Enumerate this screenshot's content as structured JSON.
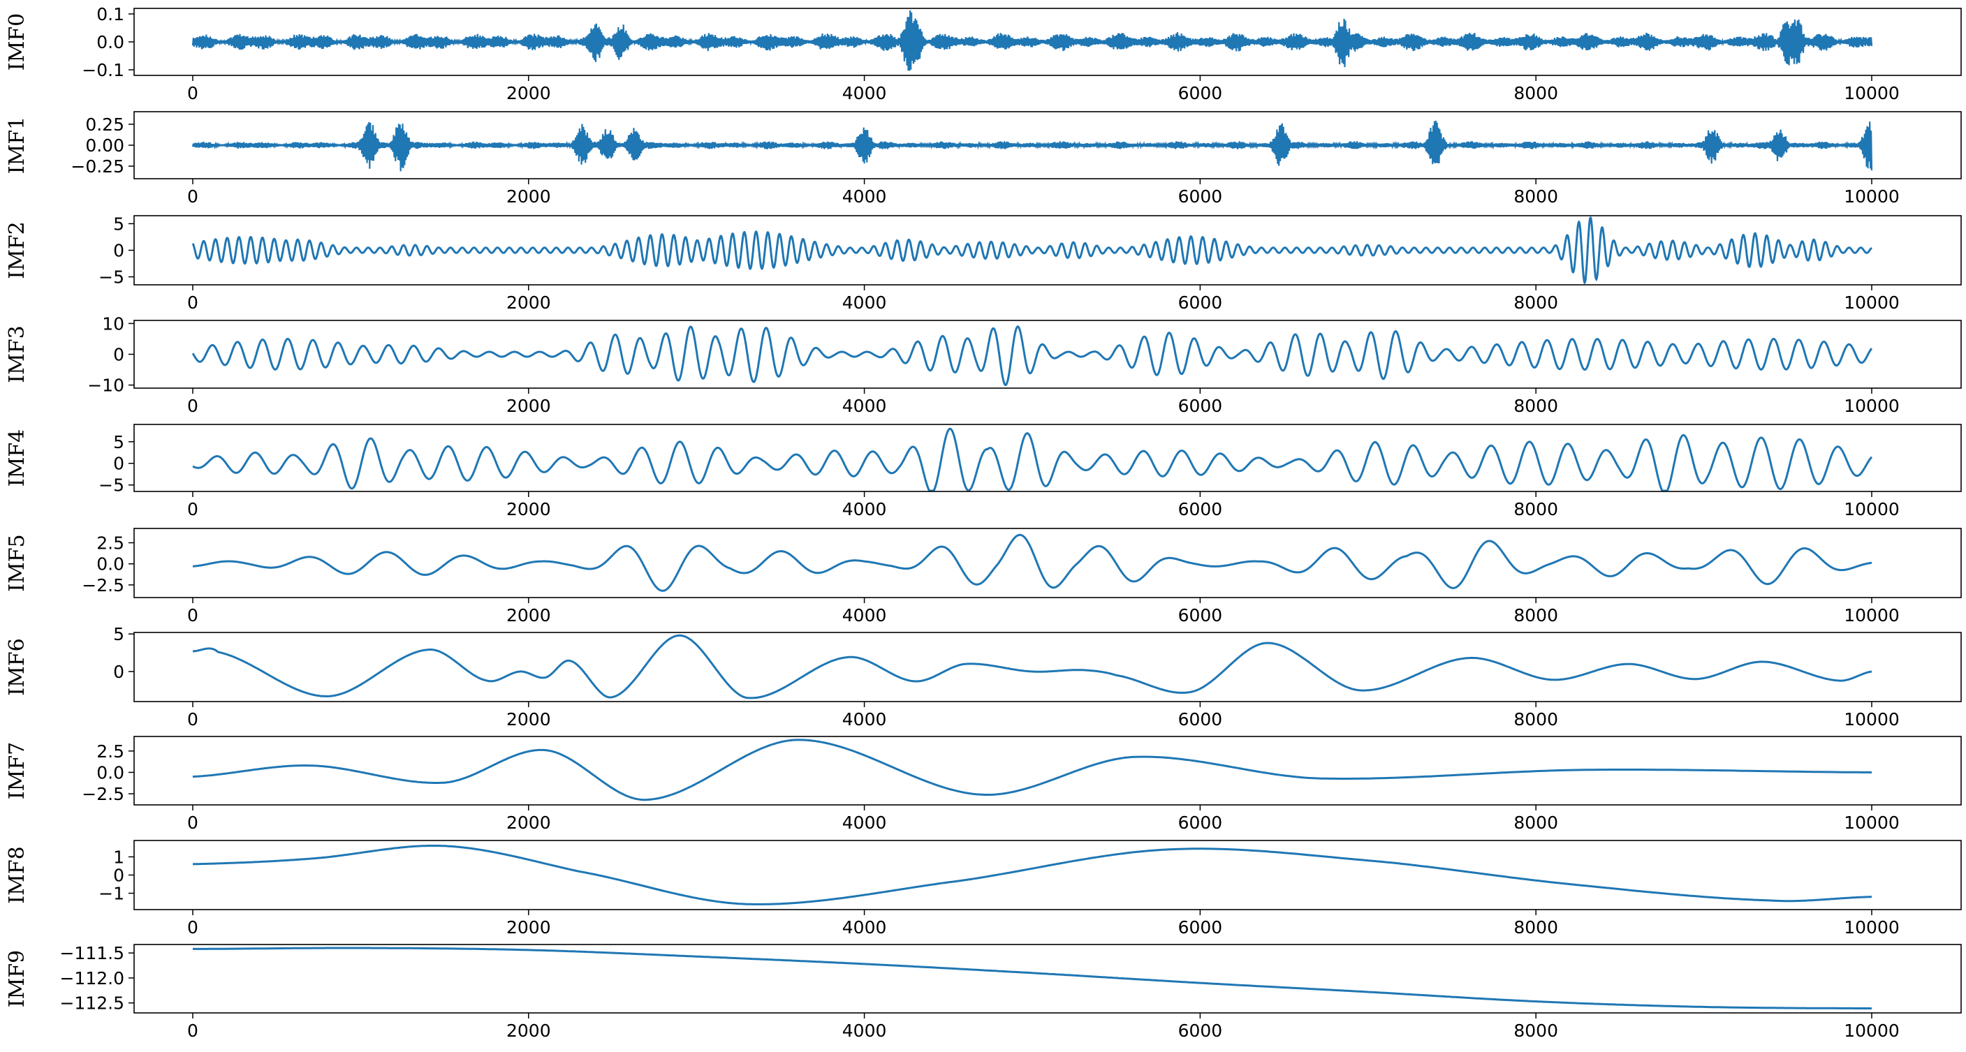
{
  "chart_data": [
    {
      "type": "line",
      "ylabel": "IMF0",
      "xlim": [
        0,
        10000
      ],
      "ylim": [
        -0.12,
        0.12
      ],
      "xticks": [
        0,
        2000,
        4000,
        6000,
        8000,
        10000
      ],
      "yticks": [
        0.1,
        0.0,
        -0.1
      ],
      "ytick_labels": [
        "0.1",
        "0.0",
        "−0.1"
      ],
      "color": "#1f77b4",
      "signal": {
        "kind": "noise",
        "amp": 0.035,
        "bursts": [
          [
            2400,
            0.075
          ],
          [
            2550,
            0.07
          ],
          [
            4270,
            0.115
          ],
          [
            4300,
            0.1
          ],
          [
            6850,
            0.1
          ],
          [
            9500,
            0.09
          ],
          [
            9550,
            0.1
          ]
        ]
      }
    },
    {
      "type": "line",
      "ylabel": "IMF1",
      "xlim": [
        0,
        10000
      ],
      "ylim": [
        -0.4,
        0.4
      ],
      "xticks": [
        0,
        2000,
        4000,
        6000,
        8000,
        10000
      ],
      "yticks": [
        0.25,
        0.0,
        -0.25
      ],
      "ytick_labels": [
        "0.25",
        "0.00",
        "−0.25"
      ],
      "color": "#1f77b4",
      "signal": {
        "kind": "noise",
        "amp": 0.05,
        "bursts": [
          [
            1050,
            0.32
          ],
          [
            1240,
            0.32
          ],
          [
            2320,
            0.26
          ],
          [
            2470,
            0.22
          ],
          [
            2630,
            0.22
          ],
          [
            4000,
            0.24
          ],
          [
            6480,
            0.28
          ],
          [
            7400,
            0.33
          ],
          [
            9050,
            0.23
          ],
          [
            9450,
            0.22
          ],
          [
            9990,
            0.32
          ]
        ]
      }
    },
    {
      "type": "line",
      "ylabel": "IMF2",
      "xlim": [
        0,
        10000
      ],
      "ylim": [
        -6.5,
        6.5
      ],
      "xticks": [
        0,
        2000,
        4000,
        6000,
        8000,
        10000
      ],
      "yticks": [
        5,
        0,
        -5
      ],
      "ytick_labels": [
        "5",
        "0",
        "−5"
      ],
      "color": "#1f77b4",
      "signal": {
        "kind": "packets",
        "period": 70,
        "packets": [
          [
            320,
            2.5,
            420
          ],
          [
            620,
            2.0,
            250
          ],
          [
            1300,
            1.0,
            200
          ],
          [
            2800,
            3.0,
            300
          ],
          [
            3350,
            3.5,
            400
          ],
          [
            4250,
            2.0,
            200
          ],
          [
            4750,
            1.6,
            250
          ],
          [
            5250,
            1.5,
            180
          ],
          [
            5950,
            2.6,
            300
          ],
          [
            7000,
            1.0,
            250
          ],
          [
            8310,
            6.2,
            140
          ],
          [
            8800,
            1.8,
            200
          ],
          [
            9300,
            3.2,
            200
          ],
          [
            9650,
            2.0,
            150
          ]
        ]
      }
    },
    {
      "type": "line",
      "ylabel": "IMF3",
      "xlim": [
        0,
        10000
      ],
      "ylim": [
        -11,
        11
      ],
      "xticks": [
        0,
        2000,
        4000,
        6000,
        8000,
        10000
      ],
      "yticks": [
        10,
        0,
        -10
      ],
      "ytick_labels": [
        "10",
        "0",
        "−10"
      ],
      "color": "#1f77b4",
      "signal": {
        "kind": "packets",
        "period": 150,
        "packets": [
          [
            550,
            5,
            600
          ],
          [
            1200,
            3,
            400
          ],
          [
            2550,
            6.5,
            250
          ],
          [
            2950,
            9,
            250
          ],
          [
            3350,
            9,
            300
          ],
          [
            4500,
            6,
            300
          ],
          [
            4850,
            10,
            200
          ],
          [
            5800,
            7,
            300
          ],
          [
            6650,
            7,
            300
          ],
          [
            7100,
            8,
            250
          ],
          [
            8300,
            5,
            800
          ],
          [
            9400,
            5,
            700
          ]
        ]
      }
    },
    {
      "type": "line",
      "ylabel": "IMF4",
      "xlim": [
        0,
        10000
      ],
      "ylim": [
        -6.5,
        9
      ],
      "xticks": [
        0,
        2000,
        4000,
        6000,
        8000,
        10000
      ],
      "yticks": [
        5,
        0,
        -5
      ],
      "ytick_labels": [
        "5",
        "0",
        "−5"
      ],
      "color": "#1f77b4",
      "signal": {
        "kind": "packets",
        "period": 230,
        "packets": [
          [
            400,
            2.5,
            400
          ],
          [
            1000,
            6,
            300
          ],
          [
            1600,
            4,
            600
          ],
          [
            2900,
            5,
            400
          ],
          [
            3900,
            3,
            500
          ],
          [
            4500,
            8,
            250
          ],
          [
            4950,
            7,
            250
          ],
          [
            5800,
            3,
            600
          ],
          [
            7100,
            5,
            400
          ],
          [
            8000,
            5,
            600
          ],
          [
            8800,
            7,
            300
          ],
          [
            9400,
            6,
            600
          ]
        ]
      }
    },
    {
      "type": "line",
      "ylabel": "IMF5",
      "xlim": [
        0,
        10000
      ],
      "ylim": [
        -4,
        4.2
      ],
      "xticks": [
        0,
        2000,
        4000,
        6000,
        8000,
        10000
      ],
      "yticks": [
        2.5,
        0.0,
        -2.5
      ],
      "ytick_labels": [
        "2.5",
        "0.0",
        "−2.5"
      ],
      "color": "#1f77b4",
      "signal": {
        "kind": "packets",
        "period": 470,
        "packets": [
          [
            1200,
            1.4,
            700
          ],
          [
            2800,
            3.2,
            350
          ],
          [
            3500,
            1.5,
            400
          ],
          [
            4600,
            2.6,
            300
          ],
          [
            5000,
            3.8,
            250
          ],
          [
            5500,
            2.4,
            300
          ],
          [
            6900,
            2.0,
            400
          ],
          [
            7600,
            3.1,
            350
          ],
          [
            8500,
            1.5,
            400
          ],
          [
            9400,
            2.4,
            400
          ]
        ]
      }
    },
    {
      "type": "line",
      "ylabel": "IMF6",
      "xlim": [
        0,
        10000
      ],
      "ylim": [
        -4,
        5.2
      ],
      "xticks": [
        0,
        2000,
        4000,
        6000,
        8000,
        10000
      ],
      "yticks": [
        5,
        0
      ],
      "ytick_labels": [
        "5",
        "0"
      ],
      "color": "#1f77b4",
      "signal": {
        "kind": "points",
        "points": [
          [
            0,
            2.7
          ],
          [
            150,
            2.6
          ],
          [
            800,
            -3.3
          ],
          [
            1400,
            2.9
          ],
          [
            1750,
            -1.2
          ],
          [
            1950,
            0
          ],
          [
            2100,
            -0.8
          ],
          [
            2250,
            1.4
          ],
          [
            2500,
            -3.4
          ],
          [
            2900,
            4.8
          ],
          [
            3300,
            -3.5
          ],
          [
            3900,
            1.9
          ],
          [
            4300,
            -1.3
          ],
          [
            4600,
            1.0
          ],
          [
            5000,
            0
          ],
          [
            5300,
            0.2
          ],
          [
            5500,
            -0.5
          ],
          [
            5950,
            -2.7
          ],
          [
            6400,
            3.8
          ],
          [
            6950,
            -2.5
          ],
          [
            7600,
            1.8
          ],
          [
            8100,
            -1.1
          ],
          [
            8550,
            1.0
          ],
          [
            8950,
            -1.0
          ],
          [
            9350,
            1.3
          ],
          [
            9800,
            -1.2
          ],
          [
            10000,
            0
          ]
        ]
      }
    },
    {
      "type": "line",
      "ylabel": "IMF7",
      "xlim": [
        0,
        10000
      ],
      "ylim": [
        -3.8,
        4.2
      ],
      "xticks": [
        0,
        2000,
        4000,
        6000,
        8000,
        10000
      ],
      "yticks": [
        2.5,
        0.0,
        -2.5
      ],
      "ytick_labels": [
        "2.5",
        "0.0",
        "−2.5"
      ],
      "color": "#1f77b4",
      "signal": {
        "kind": "points",
        "points": [
          [
            0,
            -0.5
          ],
          [
            700,
            0.8
          ],
          [
            1500,
            -1.2
          ],
          [
            2100,
            2.6
          ],
          [
            2700,
            -3.2
          ],
          [
            3600,
            3.8
          ],
          [
            4700,
            -2.6
          ],
          [
            5600,
            1.8
          ],
          [
            6700,
            -0.7
          ],
          [
            8300,
            0.3
          ],
          [
            10000,
            0
          ]
        ]
      }
    },
    {
      "type": "line",
      "ylabel": "IMF8",
      "xlim": [
        0,
        10000
      ],
      "ylim": [
        -1.9,
        1.9
      ],
      "xticks": [
        0,
        2000,
        4000,
        6000,
        8000,
        10000
      ],
      "yticks": [
        1,
        0,
        -1
      ],
      "ytick_labels": [
        "1",
        "0",
        "−1"
      ],
      "color": "#1f77b4",
      "signal": {
        "kind": "points",
        "points": [
          [
            0,
            0.6
          ],
          [
            700,
            0.9
          ],
          [
            1500,
            1.6
          ],
          [
            2300,
            0.2
          ],
          [
            3300,
            -1.6
          ],
          [
            4500,
            -0.4
          ],
          [
            5800,
            1.4
          ],
          [
            7000,
            0.8
          ],
          [
            8200,
            -0.5
          ],
          [
            9400,
            -1.4
          ],
          [
            10000,
            -1.2
          ]
        ]
      }
    },
    {
      "type": "line",
      "ylabel": "IMF9",
      "xlim": [
        0,
        10000
      ],
      "ylim": [
        -112.7,
        -111.33
      ],
      "xticks": [
        0,
        2000,
        4000,
        6000,
        8000,
        10000
      ],
      "yticks": [
        -111.5,
        -112.0,
        -112.5
      ],
      "ytick_labels": [
        "−111.5",
        "−112.0",
        "−112.5"
      ],
      "color": "#1f77b4",
      "signal": {
        "kind": "points",
        "points": [
          [
            0,
            -111.42
          ],
          [
            1000,
            -111.4
          ],
          [
            2000,
            -111.44
          ],
          [
            3000,
            -111.57
          ],
          [
            4000,
            -111.72
          ],
          [
            5000,
            -111.9
          ],
          [
            6000,
            -112.1
          ],
          [
            7000,
            -112.28
          ],
          [
            8000,
            -112.47
          ],
          [
            9000,
            -112.58
          ],
          [
            10000,
            -112.61
          ]
        ]
      }
    }
  ]
}
